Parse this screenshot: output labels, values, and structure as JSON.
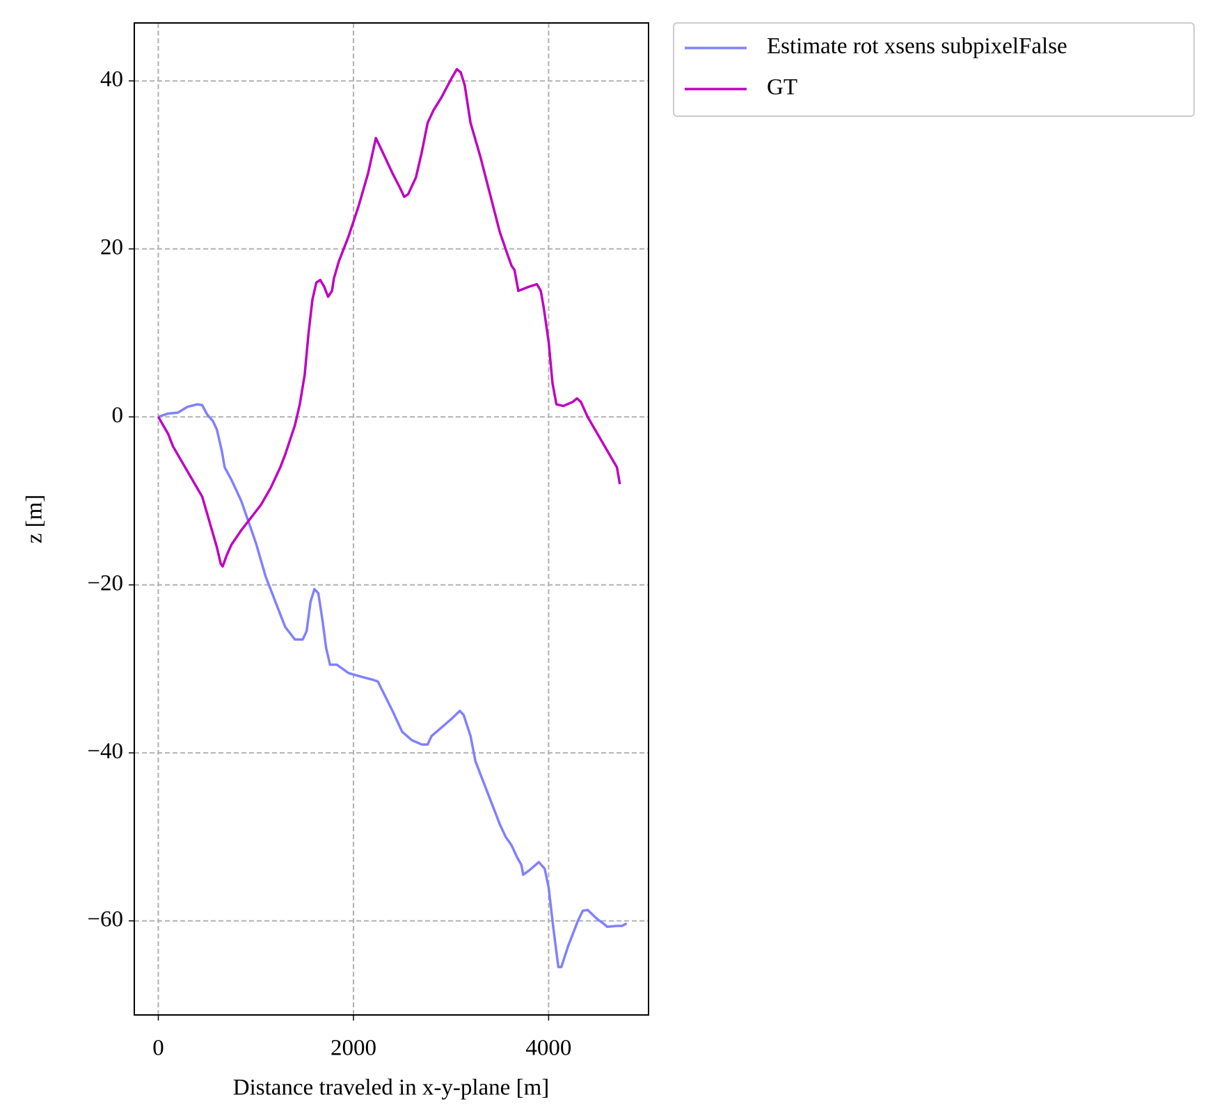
{
  "chart_data": {
    "type": "line",
    "xlabel": "Distance traveled in x-y-plane [m]",
    "ylabel": "z [m]",
    "xlim": [
      -246,
      5024
    ],
    "ylim": [
      -71.2,
      46.9
    ],
    "xticks": [
      0,
      2000,
      4000
    ],
    "yticks": [
      {
        "value": -60,
        "label": "−60"
      },
      {
        "value": -40,
        "label": "−40"
      },
      {
        "value": -20,
        "label": "−20"
      },
      0,
      20,
      40
    ],
    "grid": true,
    "legend": "outside upper right",
    "series": [
      {
        "name": "Estimate rot xsens subpixelFalse",
        "color": "#8080ff",
        "x": [
          0,
          100,
          200,
          300,
          400,
          450,
          500,
          560,
          600,
          650,
          680,
          750,
          850,
          1000,
          1100,
          1200,
          1300,
          1400,
          1480,
          1520,
          1560,
          1600,
          1640,
          1680,
          1720,
          1760,
          1830,
          1950,
          2100,
          2200,
          2250,
          2400,
          2500,
          2600,
          2700,
          2760,
          2800,
          2900,
          3000,
          3090,
          3130,
          3200,
          3250,
          3300,
          3400,
          3500,
          3560,
          3620,
          3680,
          3720,
          3740,
          3800,
          3900,
          3960,
          4000,
          4050,
          4100,
          4130,
          4200,
          4300,
          4350,
          4400,
          4500,
          4560,
          4600,
          4700,
          4750,
          4800
        ],
        "values": [
          0,
          0.4,
          0.5,
          1.2,
          1.5,
          1.4,
          0.3,
          -0.5,
          -1.5,
          -4,
          -6,
          -7.5,
          -10,
          -15,
          -19,
          -22,
          -25,
          -26.5,
          -26.5,
          -25.5,
          -22,
          -20.5,
          -21,
          -24,
          -27.5,
          -29.5,
          -29.5,
          -30.5,
          -31,
          -31.3,
          -31.5,
          -35,
          -37.5,
          -38.5,
          -39,
          -39,
          -38,
          -37,
          -36,
          -35,
          -35.5,
          -38,
          -41,
          -42.5,
          -45.5,
          -48.5,
          -50,
          -51,
          -52.5,
          -53.3,
          -54.5,
          -54,
          -53,
          -53.8,
          -56,
          -61,
          -65.5,
          -65.5,
          -63,
          -60,
          -58.8,
          -58.7,
          -59.8,
          -60.3,
          -60.7,
          -60.6,
          -60.6,
          -60.3
        ]
      },
      {
        "name": "GT",
        "color": "#bf00bf",
        "x": [
          0,
          100,
          150,
          250,
          350,
          450,
          500,
          550,
          600,
          640,
          660,
          700,
          750,
          850,
          950,
          1050,
          1150,
          1250,
          1300,
          1400,
          1450,
          1500,
          1540,
          1580,
          1620,
          1660,
          1700,
          1740,
          1780,
          1800,
          1850,
          1950,
          2050,
          2150,
          2230,
          2300,
          2400,
          2480,
          2520,
          2560,
          2640,
          2700,
          2760,
          2820,
          2900,
          3000,
          3060,
          3100,
          3140,
          3200,
          3300,
          3400,
          3500,
          3580,
          3620,
          3650,
          3690,
          3800,
          3880,
          3920,
          3950,
          4000,
          4040,
          4080,
          4150,
          4250,
          4290,
          4330,
          4400,
          4500,
          4600,
          4700,
          4730
        ],
        "values": [
          0,
          -2,
          -3.5,
          -5.5,
          -7.5,
          -9.5,
          -11.5,
          -13.5,
          -15.5,
          -17.5,
          -17.8,
          -16.5,
          -15.2,
          -13.5,
          -12,
          -10.5,
          -8.5,
          -6,
          -4.5,
          -1,
          1.5,
          5,
          10,
          14,
          16,
          16.3,
          15.5,
          14.3,
          15,
          16.5,
          18.5,
          21.5,
          25,
          29,
          33.2,
          31.5,
          29,
          27.2,
          26.2,
          26.5,
          28.5,
          31.5,
          35,
          36.5,
          38,
          40.2,
          41.4,
          41,
          39.5,
          35,
          31,
          26.5,
          22,
          19.3,
          18,
          17.5,
          15,
          15.5,
          15.8,
          15,
          13,
          9,
          4,
          1.5,
          1.3,
          1.8,
          2.2,
          1.8,
          0,
          -2,
          -4,
          -6,
          -8
        ]
      }
    ]
  }
}
